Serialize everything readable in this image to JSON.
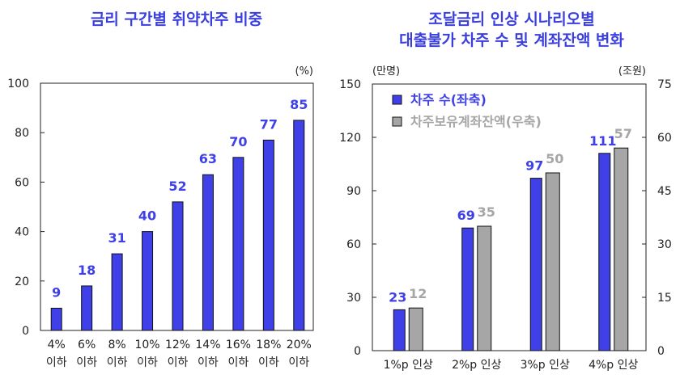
{
  "chart_data": [
    {
      "type": "bar",
      "title": "금리 구간별 취약차주 비중",
      "unit": "(%)",
      "categories": [
        [
          "4%",
          "이하"
        ],
        [
          "6%",
          "이하"
        ],
        [
          "8%",
          "이하"
        ],
        [
          "10%",
          "이하"
        ],
        [
          "12%",
          "이하"
        ],
        [
          "14%",
          "이하"
        ],
        [
          "16%",
          "이하"
        ],
        [
          "18%",
          "이하"
        ],
        [
          "20%",
          "이하"
        ]
      ],
      "values": [
        9,
        18,
        31,
        40,
        52,
        63,
        70,
        77,
        85
      ],
      "ylim": [
        0,
        100
      ],
      "yticks": [
        0,
        20,
        40,
        60,
        80,
        100
      ],
      "color": "#4040e8",
      "grid": false
    },
    {
      "type": "bar",
      "title": [
        "조달금리 인상 시나리오별",
        "대출불가 차주 수 및 계좌잔액 변화"
      ],
      "left_unit": "(만명)",
      "right_unit": "(조원)",
      "categories": [
        "1%p 인상",
        "2%p 인상",
        "3%p 인상",
        "4%p 인상"
      ],
      "series": [
        {
          "name": "차주 수(좌축)",
          "values": [
            23,
            69,
            97,
            111
          ],
          "axis": "left",
          "color": "#4040e8"
        },
        {
          "name": "차주보유계좌잔액(우축)",
          "values": [
            12,
            35,
            50,
            57
          ],
          "axis": "right",
          "color": "#a6a6a6"
        }
      ],
      "ylim_left": [
        0,
        150
      ],
      "yticks_left": [
        0,
        30,
        60,
        90,
        120,
        150
      ],
      "ylim_right": [
        0,
        75
      ],
      "yticks_right": [
        0,
        15,
        30,
        45,
        60,
        75
      ],
      "legend": "top-left",
      "grid": false
    }
  ]
}
